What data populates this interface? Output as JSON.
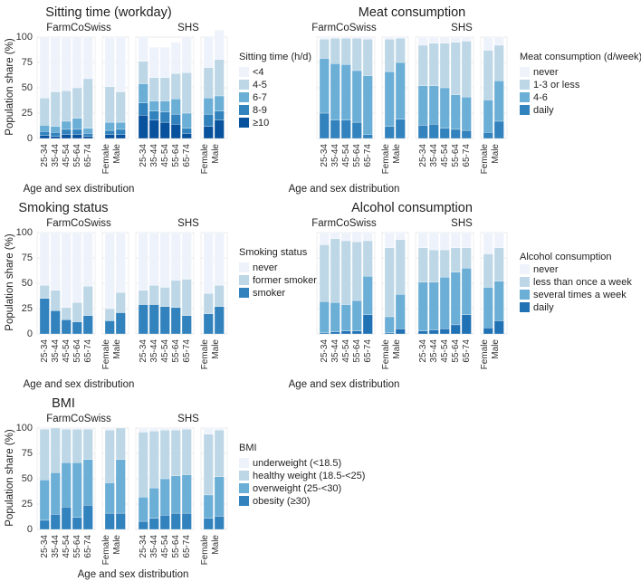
{
  "x_label": "Age and sex distribution",
  "y_label": "Population share (%)",
  "y_ticks": [
    "0",
    "25",
    "50",
    "75",
    "100"
  ],
  "group_labels": [
    "FarmCoSwiss",
    "SHS"
  ],
  "categories_age": [
    "25-34",
    "35-44",
    "45-54",
    "55-64",
    "65-74"
  ],
  "categories_sex": [
    "Female",
    "Male"
  ],
  "chart_data": [
    {
      "id": "sitting",
      "type": "bar",
      "stacked": true,
      "title": "Sitting time (workday)",
      "legend_title": "Sitting time (h/d)",
      "ylim": [
        0,
        100
      ],
      "colors": [
        "#eef3fb",
        "#bdd7e7",
        "#6baed6",
        "#3182bd",
        "#08519c"
      ],
      "series": [
        {
          "name": "<4",
          "values": [
            [
              60,
              54,
              53,
              50,
              41
            ],
            [
              49,
              54
            ],
            [
              24,
              30,
              30,
              31,
              35
            ],
            [
              30,
              29
            ]
          ]
        },
        {
          "name": "4-5",
          "values": [
            [
              27,
              34,
              30,
              30,
              49
            ],
            [
              35,
              30
            ],
            [
              22,
              23,
              23,
              25,
              40
            ],
            [
              30,
              36
            ]
          ]
        },
        {
          "name": "6-7",
          "values": [
            [
              6,
              6,
              8,
              11,
              5
            ],
            [
              8,
              7
            ],
            [
              19,
              10,
              11,
              15,
              15
            ],
            [
              16,
              15
            ]
          ]
        },
        {
          "name": "8-9",
          "values": [
            [
              4,
              4,
              5,
              5,
              3
            ],
            [
              4,
              5
            ],
            [
              12,
              9,
              10,
              10,
              5
            ],
            [
              12,
              9
            ]
          ]
        },
        {
          "name": "≥10",
          "values": [
            [
              3,
              2,
              4,
              4,
              2
            ],
            [
              4,
              4
            ],
            [
              23,
              18,
              16,
              14,
              5
            ],
            [
              12,
              18
            ]
          ]
        }
      ]
    },
    {
      "id": "meat",
      "type": "bar",
      "stacked": true,
      "title": "Meat consumption",
      "legend_title": "Meat consumption (d/week)",
      "ylim": [
        0,
        100
      ],
      "colors": [
        "#eef3fb",
        "#bdd7e7",
        "#6baed6",
        "#3182bd"
      ],
      "series": [
        {
          "name": "never",
          "values": [
            [
              2,
              1,
              1,
              1,
              2
            ],
            [
              2,
              1
            ],
            [
              8,
              6,
              6,
              5,
              4
            ],
            [
              13,
              8
            ]
          ]
        },
        {
          "name": "1-3 or less",
          "values": [
            [
              19,
              25,
              26,
              32,
              36
            ],
            [
              32,
              24
            ],
            [
              40,
              42,
              44,
              52,
              55
            ],
            [
              49,
              35
            ]
          ]
        },
        {
          "name": "4-6",
          "values": [
            [
              54,
              56,
              55,
              51,
              58
            ],
            [
              54,
              56
            ],
            [
              39,
              38,
              40,
              34,
              33
            ],
            [
              32,
              40
            ]
          ]
        },
        {
          "name": "daily",
          "values": [
            [
              25,
              18,
              18,
              16,
              4
            ],
            [
              12,
              19
            ],
            [
              13,
              14,
              10,
              9,
              8
            ],
            [
              6,
              17
            ]
          ]
        }
      ]
    },
    {
      "id": "smoking",
      "type": "bar",
      "stacked": true,
      "title": "Smoking status",
      "legend_title": "Smoking status",
      "ylim": [
        0,
        100
      ],
      "colors": [
        "#eef3fb",
        "#bdd7e7",
        "#3182bd"
      ],
      "series": [
        {
          "name": "never",
          "values": [
            [
              52,
              57,
              74,
              69,
              53
            ],
            [
              75,
              59
            ],
            [
              57,
              52,
              54,
              47,
              46
            ],
            [
              60,
              52
            ]
          ]
        },
        {
          "name": "former smoker",
          "values": [
            [
              13,
              20,
              12,
              19,
              29
            ],
            [
              12,
              20
            ],
            [
              14,
              19,
              19,
              27,
              36
            ],
            [
              20,
              21
            ]
          ]
        },
        {
          "name": "smoker",
          "values": [
            [
              35,
              23,
              14,
              12,
              18
            ],
            [
              13,
              21
            ],
            [
              29,
              29,
              27,
              26,
              18
            ],
            [
              20,
              27
            ]
          ]
        }
      ]
    },
    {
      "id": "alcohol",
      "type": "bar",
      "stacked": true,
      "title": "Alcohol consumption",
      "legend_title": "Alcohol consumption",
      "ylim": [
        0,
        100
      ],
      "colors": [
        "#eef3fb",
        "#bdd7e7",
        "#6baed6",
        "#2171b5"
      ],
      "series": [
        {
          "name": "never",
          "values": [
            [
              12,
              6,
              8,
              10,
              8
            ],
            [
              15,
              7
            ],
            [
              15,
              17,
              17,
              15,
              15
            ],
            [
              21,
              15
            ]
          ]
        },
        {
          "name": "less than once a week",
          "values": [
            [
              56,
              63,
              63,
              58,
              35
            ],
            [
              68,
              54
            ],
            [
              34,
              32,
              27,
              24,
              20
            ],
            [
              33,
              33
            ]
          ]
        },
        {
          "name": "several times a week",
          "values": [
            [
              31,
              29,
              26,
              30,
              38
            ],
            [
              16,
              34
            ],
            [
              48,
              47,
              51,
              52,
              46
            ],
            [
              40,
              39
            ]
          ]
        },
        {
          "name": "daily",
          "values": [
            [
              1,
              2,
              3,
              3,
              19
            ],
            [
              1,
              5
            ],
            [
              3,
              4,
              5,
              9,
              19
            ],
            [
              6,
              13
            ]
          ]
        }
      ]
    },
    {
      "id": "bmi",
      "type": "bar",
      "stacked": true,
      "title": "BMI",
      "legend_title": "BMI",
      "ylim": [
        0,
        100
      ],
      "colors": [
        "#eef3fb",
        "#bdd7e7",
        "#6baed6",
        "#3182bd"
      ],
      "series": [
        {
          "name": "underweight (<18.5)",
          "values": [
            [
              1,
              0,
              1,
              1,
              1
            ],
            [
              2,
              0
            ],
            [
              4,
              3,
              2,
              2,
              1
            ],
            [
              6,
              2
            ]
          ]
        },
        {
          "name": "healthy weight (18.5-<25)",
          "values": [
            [
              50,
              44,
              33,
              33,
              30
            ],
            [
              52,
              31
            ],
            [
              64,
              56,
              48,
              45,
              45
            ],
            [
              60,
              46
            ]
          ]
        },
        {
          "name": "overweight (25-<30)",
          "values": [
            [
              40,
              41,
              44,
              54,
              45
            ],
            [
              30,
              53
            ],
            [
              24,
              30,
              36,
              37,
              38
            ],
            [
              23,
              39
            ]
          ]
        },
        {
          "name": "obesity (≥30)",
          "values": [
            [
              9,
              15,
              22,
              12,
              24
            ],
            [
              16,
              16
            ],
            [
              8,
              11,
              14,
              16,
              16
            ],
            [
              11,
              13
            ]
          ]
        }
      ]
    }
  ]
}
